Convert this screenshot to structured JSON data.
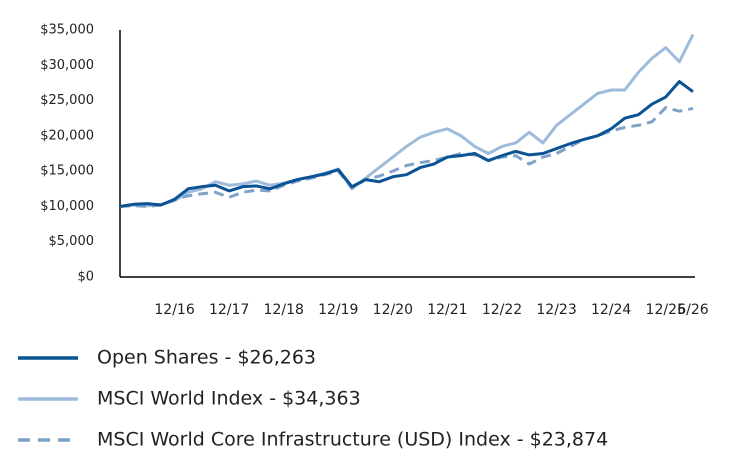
{
  "chart_data": {
    "type": "line",
    "categories": [
      null,
      null,
      null,
      null,
      "12/16",
      null,
      null,
      null,
      "12/17",
      null,
      null,
      null,
      "12/18",
      null,
      null,
      null,
      "12/19",
      null,
      null,
      null,
      "12/20",
      null,
      null,
      null,
      "12/21",
      null,
      null,
      null,
      "12/22",
      null,
      null,
      null,
      "12/23",
      null,
      null,
      null,
      "12/24",
      null,
      null,
      null,
      "12/25",
      null,
      "6/26"
    ],
    "series": [
      {
        "name": "Open Shares - $26,263",
        "color": "#0b5394",
        "dash": false,
        "values": [
          10000,
          10300,
          10400,
          10200,
          11000,
          12500,
          12800,
          13000,
          12200,
          12800,
          12900,
          12500,
          13200,
          13800,
          14200,
          14600,
          15200,
          12800,
          13800,
          13500,
          14200,
          14500,
          15500,
          16000,
          17000,
          17200,
          17500,
          16500,
          17200,
          17800,
          17300,
          17500,
          18200,
          18900,
          19500,
          20000,
          21000,
          22500,
          23000,
          24500,
          25500,
          27700,
          26263
        ]
      },
      {
        "name": "MSCI World Index - $34,363",
        "color": "#9dbcdb",
        "dash": false,
        "values": [
          10000,
          10200,
          10100,
          10300,
          10800,
          12000,
          12500,
          13500,
          13000,
          13200,
          13600,
          13000,
          13300,
          13800,
          14200,
          14700,
          15300,
          12500,
          14000,
          15500,
          17000,
          18500,
          19800,
          20500,
          21000,
          20000,
          18500,
          17500,
          18500,
          19000,
          20500,
          19000,
          21500,
          23000,
          24500,
          26000,
          26500,
          26500,
          29000,
          31000,
          32500,
          30500,
          34363
        ]
      },
      {
        "name": "MSCI World Core Infrastructure (USD) Index - $23,874",
        "color": "#7fa3c8",
        "dash": true,
        "values": [
          10000,
          10100,
          10000,
          10200,
          11000,
          11500,
          11800,
          12000,
          11300,
          12000,
          12300,
          12200,
          13000,
          13600,
          14000,
          14500,
          15000,
          12600,
          13800,
          14300,
          15000,
          15800,
          16200,
          16500,
          17000,
          17500,
          17300,
          16500,
          17000,
          17200,
          16000,
          17000,
          17500,
          18500,
          19500,
          20000,
          20700,
          21200,
          21500,
          22000,
          24000,
          23500,
          23874
        ]
      }
    ],
    "ylim": [
      0,
      35000
    ],
    "yticks": [
      {
        "value": 0,
        "label": "$0"
      },
      {
        "value": 5000,
        "label": "$5,000"
      },
      {
        "value": 10000,
        "label": "$10,000"
      },
      {
        "value": 15000,
        "label": "$15,000"
      },
      {
        "value": 20000,
        "label": "$20,000"
      },
      {
        "value": 25000,
        "label": "$25,000"
      },
      {
        "value": 30000,
        "label": "$30,000"
      },
      {
        "value": 35000,
        "label": "$35,000"
      }
    ],
    "grid": false
  }
}
